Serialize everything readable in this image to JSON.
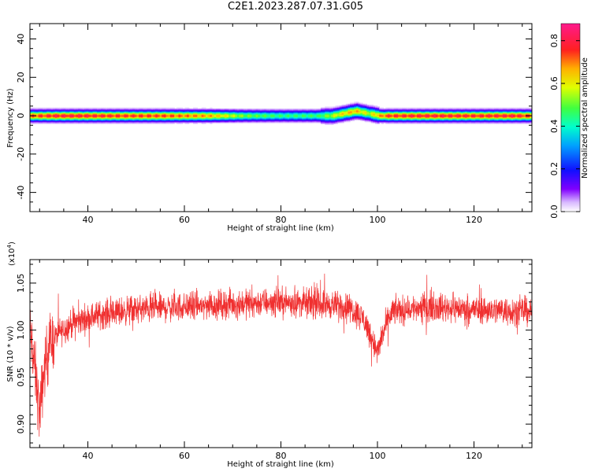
{
  "page_title": "C2E1.2023.287.07.31.G05",
  "chart_data": [
    {
      "type": "heatmap",
      "title": "C2E1.2023.287.07.31.G05",
      "xlabel": "Height of straight line (km)",
      "ylabel": "Frequency (Hz)",
      "xlim": [
        28,
        132
      ],
      "ylim": [
        -50,
        48
      ],
      "xticks": [
        40,
        60,
        80,
        100,
        120
      ],
      "yticks": [
        -40,
        -20,
        0,
        20,
        40
      ],
      "colorbar": {
        "label": "Normalized spectral amplitude",
        "range": [
          0.0,
          0.88
        ],
        "ticks": [
          "0.0",
          "0.2",
          "0.4",
          "0.6",
          "0.8"
        ],
        "colormap": "rainbow (white-violet-blue-cyan-green-yellow-orange-red-magenta)"
      },
      "band": {
        "center_hz": 0,
        "center_hz_near_95km": 2.5,
        "description": "narrow band centered at 0 Hz with peak near-red amplitude along center, weaker green segments around 70-90 km"
      },
      "amplitude_profile": {
        "x": [
          28,
          33,
          38,
          45,
          55,
          65,
          72,
          80,
          88,
          92,
          95,
          98,
          102,
          110,
          120,
          128,
          132
        ],
        "center_value": [
          0.78,
          0.85,
          0.85,
          0.82,
          0.8,
          0.72,
          0.55,
          0.48,
          0.5,
          0.65,
          0.72,
          0.6,
          0.82,
          0.85,
          0.83,
          0.85,
          0.8
        ]
      }
    },
    {
      "type": "line",
      "title": "",
      "xlabel": "Height of straight line (km)",
      "ylabel": "SNR (10 * v/v)",
      "y_multiplier_label": "(x10",
      "y_multiplier_exp": "4",
      "xlim": [
        28,
        132
      ],
      "ylim": [
        0.875,
        1.075
      ],
      "xticks": [
        40,
        60,
        80,
        100,
        120
      ],
      "yticks": [
        "0.90",
        "0.95",
        "1.00",
        "1.05"
      ],
      "color": "#f03030",
      "trend": {
        "x": [
          28,
          29,
          30,
          31,
          32,
          34,
          37,
          42,
          50,
          60,
          70,
          80,
          88,
          94,
          97,
          99,
          100,
          101,
          103,
          110,
          120,
          132
        ],
        "y": [
          1.0,
          0.96,
          0.91,
          0.96,
          0.985,
          0.997,
          1.008,
          1.016,
          1.022,
          1.025,
          1.028,
          1.03,
          1.028,
          1.025,
          1.013,
          0.99,
          0.975,
          0.995,
          1.02,
          1.025,
          1.022,
          1.02
        ]
      },
      "noise_amplitude": 0.022
    }
  ]
}
